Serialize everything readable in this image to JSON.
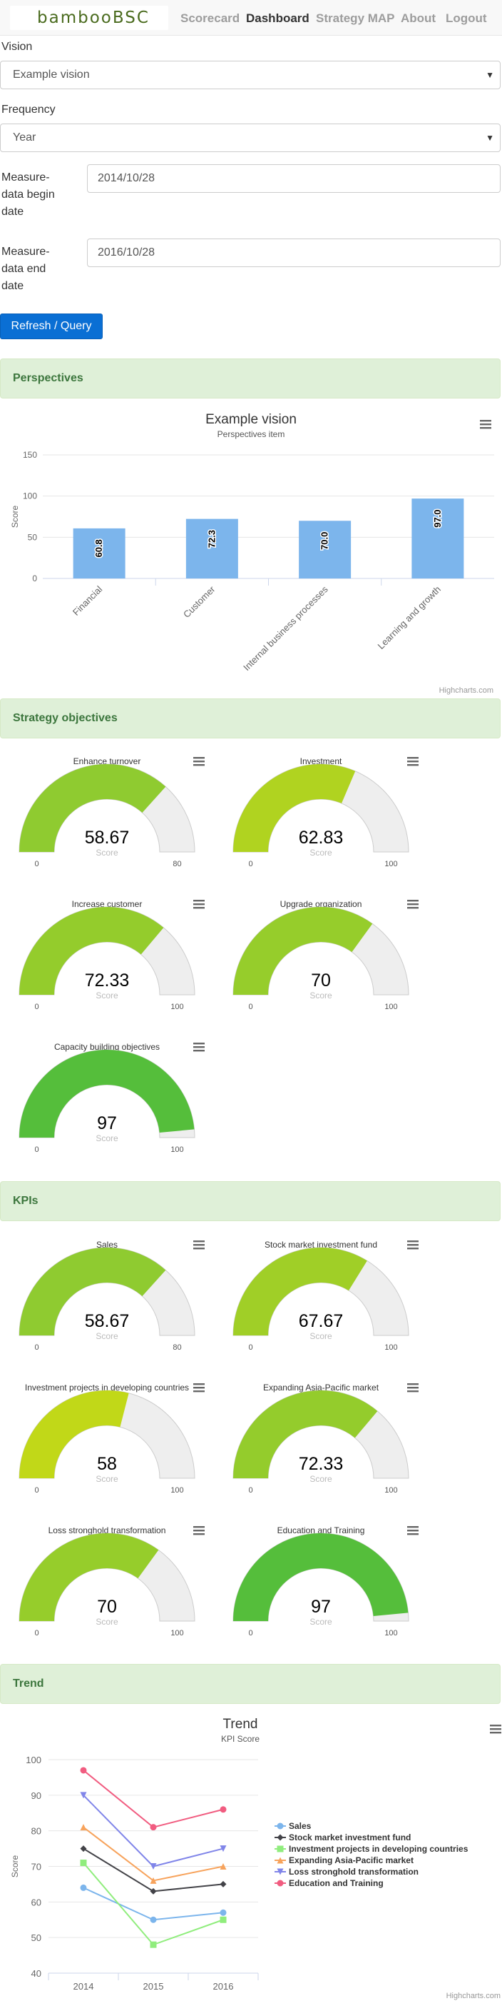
{
  "navbar": {
    "brand": "bambooBSC",
    "items": [
      {
        "label": "Scorecard",
        "active": false
      },
      {
        "label": "Dashboard",
        "active": true
      },
      {
        "label": "Strategy MAP",
        "active": false
      },
      {
        "label": "About",
        "active": false
      },
      {
        "label": "Logout",
        "active": false
      }
    ]
  },
  "form": {
    "vision_label": "Vision",
    "vision_value": "Example vision",
    "frequency_label": "Frequency",
    "frequency_value": "Year",
    "begin_label_lines": [
      "Measure-",
      "data begin",
      "date"
    ],
    "begin_value": "2014/10/28",
    "end_label_lines": [
      "Measure-",
      "data end",
      "date"
    ],
    "end_value": "2016/10/28",
    "query_button": "Refresh / Query"
  },
  "sections": {
    "perspectives": "Perspectives",
    "objectives": "Strategy objectives",
    "kpis": "KPIs",
    "trend": "Trend"
  },
  "colors": {
    "bar": "#7cb5ec",
    "gauge_track": "#eeeeee",
    "section_bg": "#dff0d8",
    "section_text": "#3c763d",
    "button": "#0a6fd4"
  },
  "credits": "Highcharts.com",
  "chart_data": [
    {
      "type": "bar",
      "title": "Example vision",
      "subtitle": "Perspectives item",
      "ylabel": "Score",
      "ylim": [
        0,
        150
      ],
      "yticks": [
        0,
        50,
        100,
        150
      ],
      "categories": [
        "Financial",
        "Customer",
        "Internal business processes",
        "Learning and growth"
      ],
      "values": [
        60.8,
        72.3,
        70.0,
        97.0
      ],
      "value_labels": [
        "60.8",
        "72.3",
        "70.0",
        "97.0"
      ]
    },
    {
      "type": "gauge-group",
      "name": "Strategy objectives",
      "gauges": [
        {
          "title": "Enhance turnover",
          "value": 58.67,
          "max": 80,
          "min": 0,
          "color": "#8fcb30",
          "label": "Score"
        },
        {
          "title": "Investment",
          "value": 62.83,
          "max": 100,
          "min": 0,
          "color": "#b0d320",
          "label": "Score"
        },
        {
          "title": "Increase customer",
          "value": 72.33,
          "max": 100,
          "min": 0,
          "color": "#94cc2c",
          "label": "Score"
        },
        {
          "title": "Upgrade organization",
          "value": 70,
          "max": 100,
          "min": 0,
          "color": "#96cd2b",
          "label": "Score"
        },
        {
          "title": "Capacity building objectives",
          "value": 97,
          "max": 100,
          "min": 0,
          "color": "#55be3b",
          "label": "Score"
        }
      ]
    },
    {
      "type": "gauge-group",
      "name": "KPIs",
      "gauges": [
        {
          "title": "Sales",
          "value": 58.67,
          "max": 80,
          "min": 0,
          "color": "#8fcb30",
          "label": "Score"
        },
        {
          "title": "Stock market investment fund",
          "value": 67.67,
          "max": 100,
          "min": 0,
          "color": "#a0cf27",
          "label": "Score"
        },
        {
          "title": "Investment projects in developing countries",
          "value": 58,
          "max": 100,
          "min": 0,
          "color": "#c1d818",
          "label": "Score"
        },
        {
          "title": "Expanding Asia-Pacific market",
          "value": 72.33,
          "max": 100,
          "min": 0,
          "color": "#94cc2c",
          "label": "Score"
        },
        {
          "title": "Loss stronghold transformation",
          "value": 70,
          "max": 100,
          "min": 0,
          "color": "#96cd2b",
          "label": "Score"
        },
        {
          "title": "Education and Training",
          "value": 97,
          "max": 100,
          "min": 0,
          "color": "#55be3b",
          "label": "Score"
        }
      ]
    },
    {
      "type": "line",
      "title": "Trend",
      "subtitle": "KPI Score",
      "ylabel": "Score",
      "ylim": [
        40,
        100
      ],
      "yticks": [
        40,
        50,
        60,
        70,
        80,
        90,
        100
      ],
      "x": [
        "2014",
        "2015",
        "2016"
      ],
      "legend_position": "right",
      "series": [
        {
          "name": "Sales",
          "values": [
            64,
            55,
            57
          ],
          "color": "#7cb5ec",
          "marker": "circle"
        },
        {
          "name": "Stock market investment fund",
          "values": [
            75,
            63,
            65
          ],
          "color": "#434348",
          "marker": "diamond"
        },
        {
          "name": "Investment projects in developing countries",
          "values": [
            71,
            48,
            55
          ],
          "color": "#90ed7d",
          "marker": "square"
        },
        {
          "name": "Expanding Asia-Pacific market",
          "values": [
            81,
            66,
            70
          ],
          "color": "#f7a35c",
          "marker": "triangle"
        },
        {
          "name": "Loss stronghold transformation",
          "values": [
            90,
            70,
            75
          ],
          "color": "#8085e9",
          "marker": "triangle-down"
        },
        {
          "name": "Education and Training",
          "values": [
            97,
            81,
            86
          ],
          "color": "#f15c80",
          "marker": "circle"
        }
      ]
    }
  ]
}
